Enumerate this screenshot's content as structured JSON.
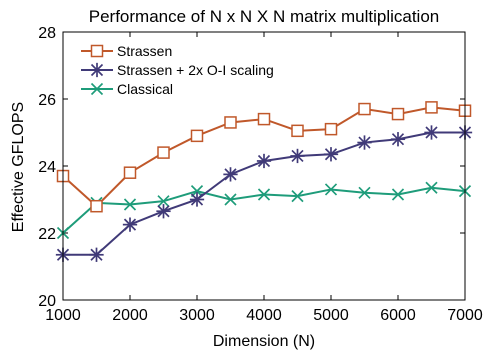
{
  "chart_data": {
    "type": "line",
    "title": "Performance of N x N X N matrix multiplication",
    "xlabel": "Dimension (N)",
    "ylabel": "Effective GFLOPS",
    "xlim": [
      1000,
      7000
    ],
    "ylim": [
      20,
      28
    ],
    "xticks": [
      1000,
      2000,
      3000,
      4000,
      5000,
      6000,
      7000
    ],
    "yticks": [
      20,
      22,
      24,
      26,
      28
    ],
    "grid": false,
    "legend_position": "top-left",
    "x": [
      1000,
      1500,
      2000,
      2500,
      3000,
      3500,
      4000,
      4500,
      5000,
      5500,
      6000,
      6500,
      7000
    ],
    "series": [
      {
        "name": "Strassen",
        "marker": "square",
        "color": "#c0582a",
        "values": [
          23.7,
          22.8,
          23.8,
          24.4,
          24.9,
          25.3,
          25.4,
          25.05,
          25.1,
          25.7,
          25.55,
          25.75,
          25.65
        ]
      },
      {
        "name": "Strassen + 2x O-I scaling",
        "marker": "asterisk",
        "color": "#403a78",
        "values": [
          21.35,
          21.35,
          22.25,
          22.65,
          23.0,
          23.75,
          24.15,
          24.3,
          24.35,
          24.7,
          24.8,
          25.0,
          25.0
        ]
      },
      {
        "name": "Classical",
        "marker": "x",
        "color": "#1e9c7a",
        "values": [
          22.0,
          22.9,
          22.85,
          22.95,
          23.25,
          23.0,
          23.15,
          23.1,
          23.3,
          23.2,
          23.15,
          23.35,
          23.25
        ]
      }
    ]
  }
}
